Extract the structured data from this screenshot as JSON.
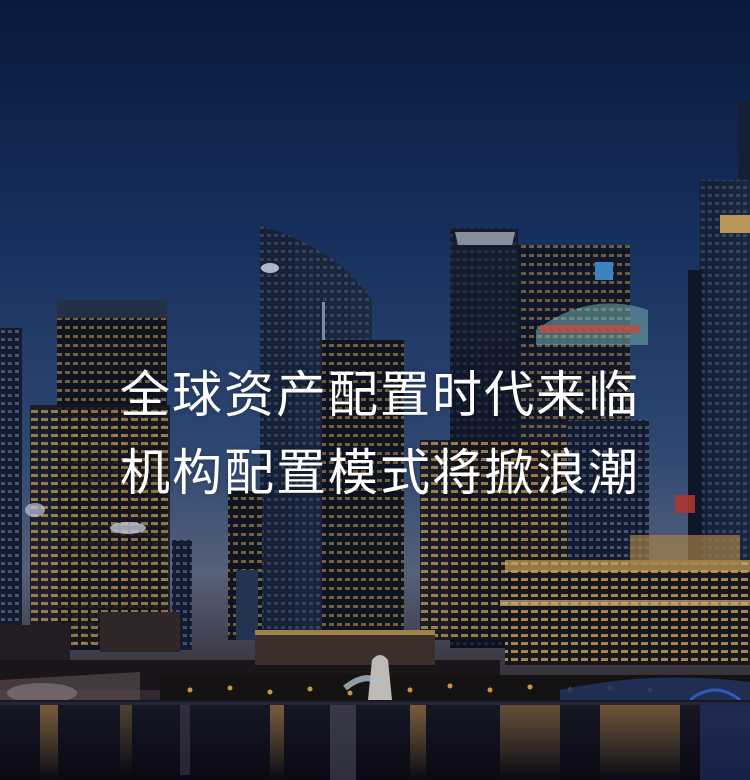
{
  "hero": {
    "image_description_icon": "city-skyline-night-icon",
    "headline_line_1": "全球资产配置时代来临",
    "headline_line_2": "机构配置模式将掀浪潮"
  },
  "colors": {
    "sky_top": "#0d1f4a",
    "sky_mid": "#24467c",
    "horizon": "#5a6f8e",
    "water": "#12131f",
    "lights": "#f3c76a",
    "text": "#ffffff"
  }
}
